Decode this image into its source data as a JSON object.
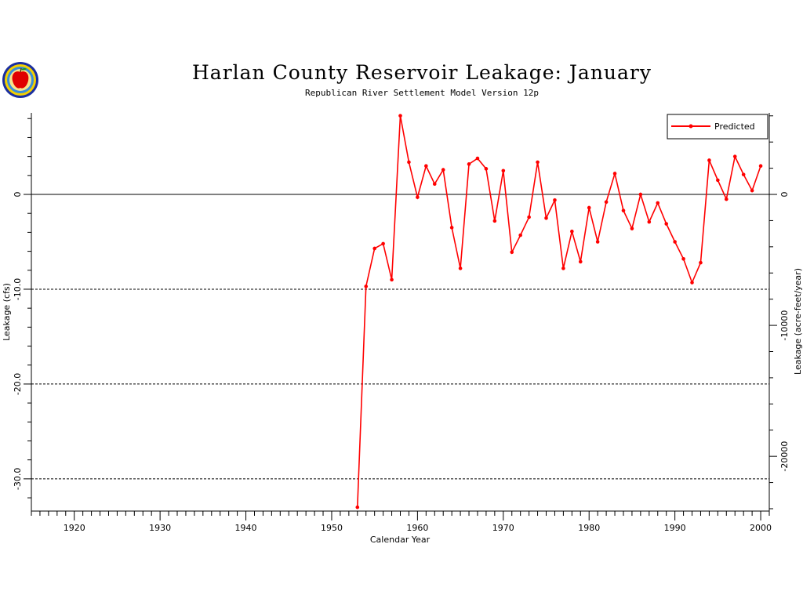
{
  "chart_data": {
    "type": "line",
    "title": "Harlan County Reservoir Leakage: January",
    "subtitle": "Republican River Settlement Model Version 12p",
    "xlabel": "Calendar Year",
    "ylabel": "Leakage (cfs)",
    "y2label": "Leakage (acre-feet/year)",
    "xlim": [
      1915,
      2001
    ],
    "ylim": [
      -33.4,
      8.6
    ],
    "xticks": [
      1920,
      1930,
      1940,
      1950,
      1960,
      1970,
      1980,
      1990,
      2000
    ],
    "xtick_labels": [
      "1920",
      "1930",
      "1940",
      "1950",
      "1960",
      "1970",
      "1980",
      "1990",
      "2000"
    ],
    "yticks": [
      0,
      -10,
      -20,
      -30
    ],
    "ytick_labels": [
      "0",
      "-10.0",
      "-20.0",
      "-30.0"
    ],
    "y2ticks": [
      0,
      -10000,
      -20000
    ],
    "y2tick_labels": [
      "0",
      "-10000",
      "-20000"
    ],
    "y2_per_cfs": 723.97,
    "reference_lines": [
      {
        "y": 0,
        "style": "solid"
      },
      {
        "y": -10,
        "style": "dashed"
      },
      {
        "y": -20,
        "style": "dashed"
      },
      {
        "y": -30,
        "style": "dashed"
      }
    ],
    "legend_position": "top-right",
    "series": [
      {
        "name": "Predicted",
        "color": "#ff0000",
        "x": [
          1953,
          1954,
          1955,
          1956,
          1957,
          1958,
          1959,
          1960,
          1961,
          1962,
          1963,
          1964,
          1965,
          1966,
          1967,
          1968,
          1969,
          1970,
          1971,
          1972,
          1973,
          1974,
          1975,
          1976,
          1977,
          1978,
          1979,
          1980,
          1981,
          1982,
          1983,
          1984,
          1985,
          1986,
          1987,
          1988,
          1989,
          1990,
          1991,
          1992,
          1993,
          1994,
          1995,
          1996,
          1997,
          1998,
          1999,
          2000
        ],
        "y": [
          -33.0,
          -9.7,
          -5.7,
          -5.2,
          -9.0,
          8.3,
          3.4,
          -0.3,
          3.0,
          1.1,
          2.6,
          -3.5,
          -7.8,
          3.2,
          3.8,
          2.7,
          -2.8,
          2.5,
          -6.1,
          -4.3,
          -2.4,
          3.4,
          -2.5,
          -0.6,
          -7.8,
          -3.9,
          -7.1,
          -1.4,
          -5.0,
          -0.8,
          2.2,
          -1.7,
          -3.6,
          0.0,
          -2.9,
          -0.9,
          -3.1,
          -5.0,
          -6.8,
          -9.3,
          -7.2,
          3.6,
          1.5,
          -0.5,
          4.0,
          2.1,
          0.4,
          3.0
        ]
      }
    ]
  }
}
